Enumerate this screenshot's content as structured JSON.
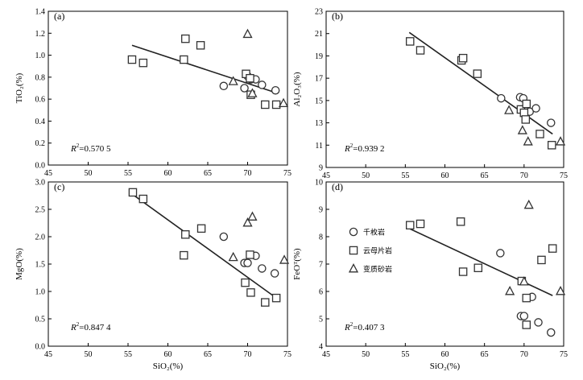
{
  "legend": [
    {
      "label": "千枚岩",
      "marker": "circle"
    },
    {
      "label": "云母片岩",
      "marker": "square"
    },
    {
      "label": "变质砂岩",
      "marker": "triangle"
    }
  ],
  "chart_data": [
    {
      "type": "scatter",
      "panel": "(a)",
      "ylabel": "TiO₂(%)",
      "xlabel": "",
      "xlim": [
        45,
        75
      ],
      "ylim": [
        0.0,
        1.4
      ],
      "xticks": [
        45,
        50,
        55,
        60,
        65,
        70,
        75
      ],
      "yticks": [
        0.0,
        0.2,
        0.4,
        0.6,
        0.8,
        1.0,
        1.2,
        1.4
      ],
      "y_decimals": 1,
      "r2_value": "=0.570 5",
      "fit_line": [
        [
          55.5,
          1.09
        ],
        [
          73.5,
          0.66
        ]
      ],
      "series": [
        {
          "marker": "circle",
          "points": [
            [
              67.0,
              0.72
            ],
            [
              69.6,
              0.7
            ],
            [
              70.0,
              0.81
            ],
            [
              70.4,
              0.78
            ],
            [
              71.0,
              0.78
            ],
            [
              71.8,
              0.73
            ],
            [
              73.5,
              0.68
            ]
          ]
        },
        {
          "marker": "square",
          "points": [
            [
              55.5,
              0.96
            ],
            [
              56.9,
              0.93
            ],
            [
              62.0,
              0.96
            ],
            [
              62.2,
              1.15
            ],
            [
              64.1,
              1.09
            ],
            [
              69.8,
              0.83
            ],
            [
              70.3,
              0.79
            ],
            [
              70.4,
              0.64
            ],
            [
              72.2,
              0.55
            ],
            [
              73.6,
              0.55
            ]
          ]
        },
        {
          "marker": "triangle",
          "points": [
            [
              68.2,
              0.76
            ],
            [
              70.0,
              1.19
            ],
            [
              70.6,
              0.65
            ],
            [
              74.5,
              0.56
            ]
          ]
        }
      ]
    },
    {
      "type": "scatter",
      "panel": "(b)",
      "ylabel": "Al₂O₃(%)",
      "xlabel": "",
      "xlim": [
        45,
        75
      ],
      "ylim": [
        9,
        23
      ],
      "xticks": [
        45,
        50,
        55,
        60,
        65,
        70,
        75
      ],
      "yticks": [
        9,
        11,
        13,
        15,
        17,
        19,
        21,
        23
      ],
      "y_decimals": 0,
      "r2_value": "=0.939 2",
      "fit_line": [
        [
          55.5,
          21.1
        ],
        [
          73.6,
          12.0
        ]
      ],
      "series": [
        {
          "marker": "circle",
          "points": [
            [
              67.1,
              15.2
            ],
            [
              69.5,
              15.3
            ],
            [
              69.9,
              15.2
            ],
            [
              70.7,
              14.0
            ],
            [
              71.5,
              14.3
            ],
            [
              73.4,
              13.0
            ]
          ]
        },
        {
          "marker": "square",
          "points": [
            [
              55.6,
              20.3
            ],
            [
              56.9,
              19.5
            ],
            [
              62.1,
              18.6
            ],
            [
              62.3,
              18.8
            ],
            [
              64.1,
              17.4
            ],
            [
              69.6,
              14.2
            ],
            [
              70.0,
              13.9
            ],
            [
              70.3,
              14.7
            ],
            [
              70.2,
              13.3
            ],
            [
              72.0,
              12.0
            ],
            [
              73.5,
              11.0
            ]
          ]
        },
        {
          "marker": "triangle",
          "points": [
            [
              68.1,
              14.1
            ],
            [
              69.8,
              12.3
            ],
            [
              70.5,
              11.3
            ],
            [
              74.6,
              11.3
            ]
          ]
        }
      ]
    },
    {
      "type": "scatter",
      "panel": "(c)",
      "ylabel": "MgO(%)",
      "xlabel": "SiO₂(%)",
      "xlim": [
        45,
        75
      ],
      "ylim": [
        0.0,
        3.0
      ],
      "xticks": [
        45,
        50,
        55,
        60,
        65,
        70,
        75
      ],
      "yticks": [
        0.0,
        0.5,
        1.0,
        1.5,
        2.0,
        2.5,
        3.0
      ],
      "y_decimals": 1,
      "r2_value": "=0.847 4",
      "fit_line": [
        [
          55.5,
          2.78
        ],
        [
          73.6,
          0.88
        ]
      ],
      "series": [
        {
          "marker": "circle",
          "points": [
            [
              67.0,
              2.0
            ],
            [
              69.6,
              1.52
            ],
            [
              70.0,
              1.52
            ],
            [
              71.0,
              1.65
            ],
            [
              71.8,
              1.42
            ],
            [
              73.4,
              1.33
            ]
          ]
        },
        {
          "marker": "square",
          "points": [
            [
              55.6,
              2.81
            ],
            [
              56.9,
              2.69
            ],
            [
              62.0,
              1.66
            ],
            [
              62.2,
              2.04
            ],
            [
              64.2,
              2.15
            ],
            [
              69.7,
              1.16
            ],
            [
              70.3,
              1.67
            ],
            [
              70.4,
              0.98
            ],
            [
              72.2,
              0.8
            ],
            [
              73.6,
              0.88
            ]
          ]
        },
        {
          "marker": "triangle",
          "points": [
            [
              68.2,
              1.62
            ],
            [
              70.0,
              2.25
            ],
            [
              70.6,
              2.36
            ],
            [
              74.6,
              1.57
            ]
          ]
        }
      ]
    },
    {
      "type": "scatter",
      "panel": "(d)",
      "ylabel": "FeOᵀ(%)",
      "xlabel": "SiO₂(%)",
      "xlim": [
        45,
        75
      ],
      "ylim": [
        4,
        10
      ],
      "xticks": [
        45,
        50,
        55,
        60,
        65,
        70,
        75
      ],
      "yticks": [
        4,
        5,
        6,
        7,
        8,
        9,
        10
      ],
      "y_decimals": 0,
      "r2_value": "=0.407 3",
      "fit_line": [
        [
          55.5,
          8.3
        ],
        [
          73.6,
          5.85
        ]
      ],
      "series": [
        {
          "marker": "circle",
          "points": [
            [
              67.0,
              7.4
            ],
            [
              69.6,
              5.1
            ],
            [
              70.0,
              5.1
            ],
            [
              71.0,
              5.8
            ],
            [
              71.8,
              4.87
            ],
            [
              73.4,
              4.5
            ]
          ]
        },
        {
          "marker": "square",
          "points": [
            [
              55.6,
              8.42
            ],
            [
              56.9,
              8.47
            ],
            [
              62.0,
              8.55
            ],
            [
              62.3,
              6.72
            ],
            [
              64.2,
              6.86
            ],
            [
              69.7,
              6.38
            ],
            [
              70.3,
              4.78
            ],
            [
              70.3,
              5.76
            ],
            [
              72.2,
              7.15
            ],
            [
              73.6,
              7.57
            ]
          ]
        },
        {
          "marker": "triangle",
          "points": [
            [
              68.2,
              6.0
            ],
            [
              70.0,
              6.35
            ],
            [
              70.6,
              9.15
            ],
            [
              74.6,
              6.0
            ]
          ]
        }
      ]
    }
  ]
}
